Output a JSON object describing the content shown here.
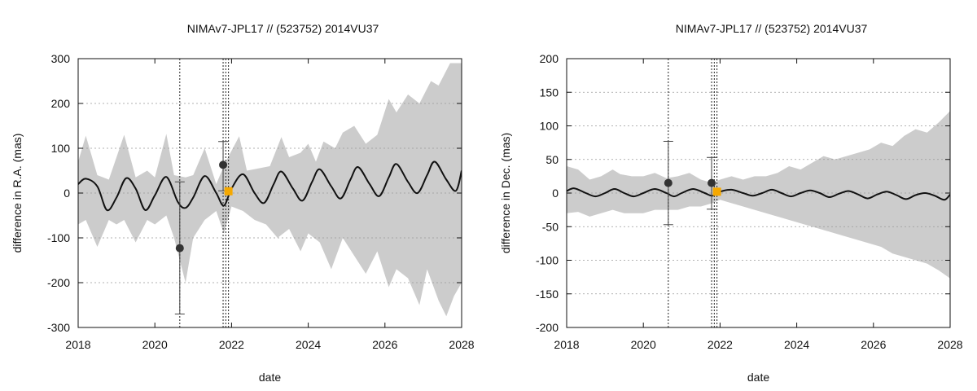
{
  "chart_data": [
    {
      "type": "line",
      "title": "NIMAv7-JPL17 // (523752) 2014VU37",
      "xlabel": "date",
      "ylabel": "difference in R.A. (mas)",
      "xlim": [
        2018,
        2028
      ],
      "ylim": [
        -300,
        300
      ],
      "xticks": [
        2018,
        2020,
        2022,
        2024,
        2026,
        2028
      ],
      "yticks": [
        -300,
        -200,
        -100,
        0,
        100,
        200,
        300
      ],
      "grid": true,
      "vlines": [
        2020.65,
        2021.78,
        2021.85,
        2021.92
      ],
      "model_curve": {
        "description": "sinusoid",
        "period_years": 1.02,
        "amplitude_start": 34,
        "amplitude_end": 55,
        "offset_start": -3,
        "offset_end": 15,
        "phase_ref_x": 2018.2,
        "phase_ref_y_at_peak": true,
        "points": [
          [
            2018.0,
            20
          ],
          [
            2018.2,
            32
          ],
          [
            2018.5,
            15
          ],
          [
            2018.75,
            -38
          ],
          [
            2019.0,
            -10
          ],
          [
            2019.25,
            33
          ],
          [
            2019.5,
            10
          ],
          [
            2019.75,
            -38
          ],
          [
            2020.0,
            -5
          ],
          [
            2020.3,
            36
          ],
          [
            2020.6,
            -20
          ],
          [
            2020.8,
            -33
          ],
          [
            2021.0,
            -10
          ],
          [
            2021.3,
            38
          ],
          [
            2021.6,
            0
          ],
          [
            2021.8,
            -28
          ],
          [
            2022.0,
            10
          ],
          [
            2022.3,
            42
          ],
          [
            2022.6,
            0
          ],
          [
            2022.85,
            -22
          ],
          [
            2023.1,
            20
          ],
          [
            2023.3,
            48
          ],
          [
            2023.6,
            10
          ],
          [
            2023.85,
            -17
          ],
          [
            2024.1,
            25
          ],
          [
            2024.3,
            53
          ],
          [
            2024.6,
            15
          ],
          [
            2024.85,
            -12
          ],
          [
            2025.1,
            30
          ],
          [
            2025.3,
            58
          ],
          [
            2025.6,
            20
          ],
          [
            2025.85,
            -7
          ],
          [
            2026.1,
            35
          ],
          [
            2026.3,
            65
          ],
          [
            2026.6,
            25
          ],
          [
            2026.85,
            0
          ],
          [
            2027.1,
            40
          ],
          [
            2027.3,
            70
          ],
          [
            2027.6,
            30
          ],
          [
            2027.85,
            5
          ],
          [
            2028.0,
            50
          ]
        ]
      },
      "uncertainty_band": {
        "upper": [
          [
            2018.0,
            70
          ],
          [
            2018.2,
            128
          ],
          [
            2018.5,
            40
          ],
          [
            2018.8,
            30
          ],
          [
            2019.0,
            80
          ],
          [
            2019.2,
            130
          ],
          [
            2019.5,
            35
          ],
          [
            2019.8,
            50
          ],
          [
            2020.0,
            35
          ],
          [
            2020.3,
            132
          ],
          [
            2020.5,
            40
          ],
          [
            2020.8,
            35
          ],
          [
            2021.0,
            40
          ],
          [
            2021.3,
            100
          ],
          [
            2021.6,
            20
          ],
          [
            2021.85,
            70
          ],
          [
            2022.2,
            127
          ],
          [
            2022.4,
            50
          ],
          [
            2022.7,
            55
          ],
          [
            2023.0,
            60
          ],
          [
            2023.3,
            125
          ],
          [
            2023.5,
            80
          ],
          [
            2023.8,
            90
          ],
          [
            2024.0,
            110
          ],
          [
            2024.2,
            70
          ],
          [
            2024.4,
            115
          ],
          [
            2024.7,
            100
          ],
          [
            2024.9,
            135
          ],
          [
            2025.2,
            150
          ],
          [
            2025.5,
            110
          ],
          [
            2025.8,
            130
          ],
          [
            2026.1,
            210
          ],
          [
            2026.3,
            180
          ],
          [
            2026.6,
            220
          ],
          [
            2026.9,
            200
          ],
          [
            2027.2,
            250
          ],
          [
            2027.4,
            240
          ],
          [
            2027.7,
            290
          ],
          [
            2028.0,
            290
          ]
        ],
        "lower": [
          [
            2018.0,
            -70
          ],
          [
            2018.2,
            -60
          ],
          [
            2018.5,
            -120
          ],
          [
            2018.8,
            -60
          ],
          [
            2019.0,
            -70
          ],
          [
            2019.2,
            -60
          ],
          [
            2019.5,
            -110
          ],
          [
            2019.8,
            -60
          ],
          [
            2020.0,
            -70
          ],
          [
            2020.3,
            -50
          ],
          [
            2020.5,
            -100
          ],
          [
            2020.8,
            -200
          ],
          [
            2021.0,
            -100
          ],
          [
            2021.3,
            -60
          ],
          [
            2021.6,
            -40
          ],
          [
            2021.8,
            -90
          ],
          [
            2022.0,
            -30
          ],
          [
            2022.3,
            -40
          ],
          [
            2022.6,
            -60
          ],
          [
            2022.9,
            -70
          ],
          [
            2023.2,
            -100
          ],
          [
            2023.5,
            -80
          ],
          [
            2023.8,
            -130
          ],
          [
            2024.0,
            -90
          ],
          [
            2024.3,
            -110
          ],
          [
            2024.6,
            -170
          ],
          [
            2024.9,
            -100
          ],
          [
            2025.2,
            -140
          ],
          [
            2025.5,
            -180
          ],
          [
            2025.8,
            -130
          ],
          [
            2026.1,
            -210
          ],
          [
            2026.3,
            -170
          ],
          [
            2026.6,
            -190
          ],
          [
            2026.9,
            -250
          ],
          [
            2027.1,
            -170
          ],
          [
            2027.4,
            -240
          ],
          [
            2027.6,
            -275
          ],
          [
            2027.8,
            -230
          ],
          [
            2028.0,
            -200
          ]
        ]
      },
      "observations": [
        {
          "x": 2020.65,
          "y": -123,
          "yerr_low": -270,
          "yerr_high": 25,
          "color": "#333333"
        },
        {
          "x": 2021.78,
          "y": 63,
          "yerr_low": 5,
          "yerr_high": 115,
          "color": "#333333"
        },
        {
          "x": 2021.92,
          "y": 4,
          "color": "#f5a800"
        }
      ],
      "colors": {
        "band": "#cccccc",
        "curve": "#111111",
        "observation": "#333333",
        "highlight": "#f5a800"
      }
    },
    {
      "type": "line",
      "title": "NIMAv7-JPL17 // (523752) 2014VU37",
      "xlabel": "date",
      "ylabel": "difference in Dec. (mas)",
      "xlim": [
        2018,
        2028
      ],
      "ylim": [
        -200,
        200
      ],
      "xticks": [
        2018,
        2020,
        2022,
        2024,
        2026,
        2028
      ],
      "yticks": [
        -200,
        -150,
        -100,
        -50,
        0,
        50,
        100,
        150,
        200
      ],
      "grid": true,
      "vlines": [
        2020.65,
        2021.78,
        2021.85,
        2021.92
      ],
      "model_curve": {
        "description": "sinusoid",
        "points": [
          [
            2018.0,
            3
          ],
          [
            2018.2,
            7
          ],
          [
            2018.5,
            0
          ],
          [
            2018.75,
            -5
          ],
          [
            2019.0,
            0
          ],
          [
            2019.25,
            6
          ],
          [
            2019.5,
            0
          ],
          [
            2019.75,
            -5
          ],
          [
            2020.0,
            0
          ],
          [
            2020.3,
            6
          ],
          [
            2020.6,
            0
          ],
          [
            2020.8,
            -5
          ],
          [
            2021.0,
            0
          ],
          [
            2021.3,
            6
          ],
          [
            2021.6,
            0
          ],
          [
            2021.8,
            -4
          ],
          [
            2022.0,
            2
          ],
          [
            2022.3,
            5
          ],
          [
            2022.6,
            0
          ],
          [
            2022.85,
            -4
          ],
          [
            2023.1,
            0
          ],
          [
            2023.35,
            5
          ],
          [
            2023.6,
            0
          ],
          [
            2023.85,
            -5
          ],
          [
            2024.1,
            0
          ],
          [
            2024.35,
            4
          ],
          [
            2024.6,
            0
          ],
          [
            2024.85,
            -6
          ],
          [
            2025.1,
            -1
          ],
          [
            2025.35,
            3
          ],
          [
            2025.6,
            -2
          ],
          [
            2025.85,
            -8
          ],
          [
            2026.1,
            -2
          ],
          [
            2026.35,
            2
          ],
          [
            2026.6,
            -3
          ],
          [
            2026.85,
            -9
          ],
          [
            2027.1,
            -3
          ],
          [
            2027.35,
            0
          ],
          [
            2027.6,
            -4
          ],
          [
            2027.85,
            -10
          ],
          [
            2028.0,
            -2
          ]
        ]
      },
      "uncertainty_band": {
        "upper": [
          [
            2018.0,
            40
          ],
          [
            2018.3,
            35
          ],
          [
            2018.6,
            20
          ],
          [
            2018.9,
            25
          ],
          [
            2019.2,
            35
          ],
          [
            2019.4,
            28
          ],
          [
            2019.7,
            25
          ],
          [
            2020.0,
            25
          ],
          [
            2020.3,
            30
          ],
          [
            2020.6,
            22
          ],
          [
            2020.9,
            25
          ],
          [
            2021.2,
            30
          ],
          [
            2021.5,
            20
          ],
          [
            2021.8,
            15
          ],
          [
            2022.0,
            20
          ],
          [
            2022.3,
            25
          ],
          [
            2022.6,
            20
          ],
          [
            2022.9,
            25
          ],
          [
            2023.2,
            25
          ],
          [
            2023.5,
            30
          ],
          [
            2023.8,
            40
          ],
          [
            2024.1,
            35
          ],
          [
            2024.4,
            45
          ],
          [
            2024.7,
            55
          ],
          [
            2025.0,
            50
          ],
          [
            2025.3,
            55
          ],
          [
            2025.6,
            60
          ],
          [
            2025.9,
            65
          ],
          [
            2026.2,
            75
          ],
          [
            2026.5,
            70
          ],
          [
            2026.8,
            85
          ],
          [
            2027.1,
            95
          ],
          [
            2027.4,
            90
          ],
          [
            2027.7,
            105
          ],
          [
            2028.0,
            122
          ]
        ],
        "lower": [
          [
            2018.0,
            -30
          ],
          [
            2018.3,
            -28
          ],
          [
            2018.6,
            -35
          ],
          [
            2018.9,
            -30
          ],
          [
            2019.2,
            -25
          ],
          [
            2019.5,
            -30
          ],
          [
            2019.8,
            -30
          ],
          [
            2020.0,
            -30
          ],
          [
            2020.3,
            -25
          ],
          [
            2020.6,
            -25
          ],
          [
            2020.9,
            -25
          ],
          [
            2021.2,
            -20
          ],
          [
            2021.5,
            -20
          ],
          [
            2021.8,
            -15
          ],
          [
            2022.0,
            -10
          ],
          [
            2022.3,
            -15
          ],
          [
            2022.6,
            -20
          ],
          [
            2022.9,
            -25
          ],
          [
            2023.2,
            -30
          ],
          [
            2023.5,
            -35
          ],
          [
            2023.8,
            -40
          ],
          [
            2024.1,
            -45
          ],
          [
            2024.4,
            -50
          ],
          [
            2024.7,
            -55
          ],
          [
            2025.0,
            -60
          ],
          [
            2025.3,
            -65
          ],
          [
            2025.6,
            -70
          ],
          [
            2025.9,
            -75
          ],
          [
            2026.2,
            -80
          ],
          [
            2026.5,
            -90
          ],
          [
            2026.8,
            -95
          ],
          [
            2027.1,
            -100
          ],
          [
            2027.4,
            -105
          ],
          [
            2027.7,
            -115
          ],
          [
            2028.0,
            -127
          ]
        ]
      },
      "observations": [
        {
          "x": 2020.65,
          "y": 15,
          "yerr_low": -47,
          "yerr_high": 77,
          "color": "#333333"
        },
        {
          "x": 2021.78,
          "y": 15,
          "yerr_low": -24,
          "yerr_high": 53,
          "color": "#333333"
        },
        {
          "x": 2021.92,
          "y": 2,
          "color": "#f5a800"
        }
      ],
      "colors": {
        "band": "#cccccc",
        "curve": "#111111",
        "observation": "#333333",
        "highlight": "#f5a800"
      }
    }
  ]
}
